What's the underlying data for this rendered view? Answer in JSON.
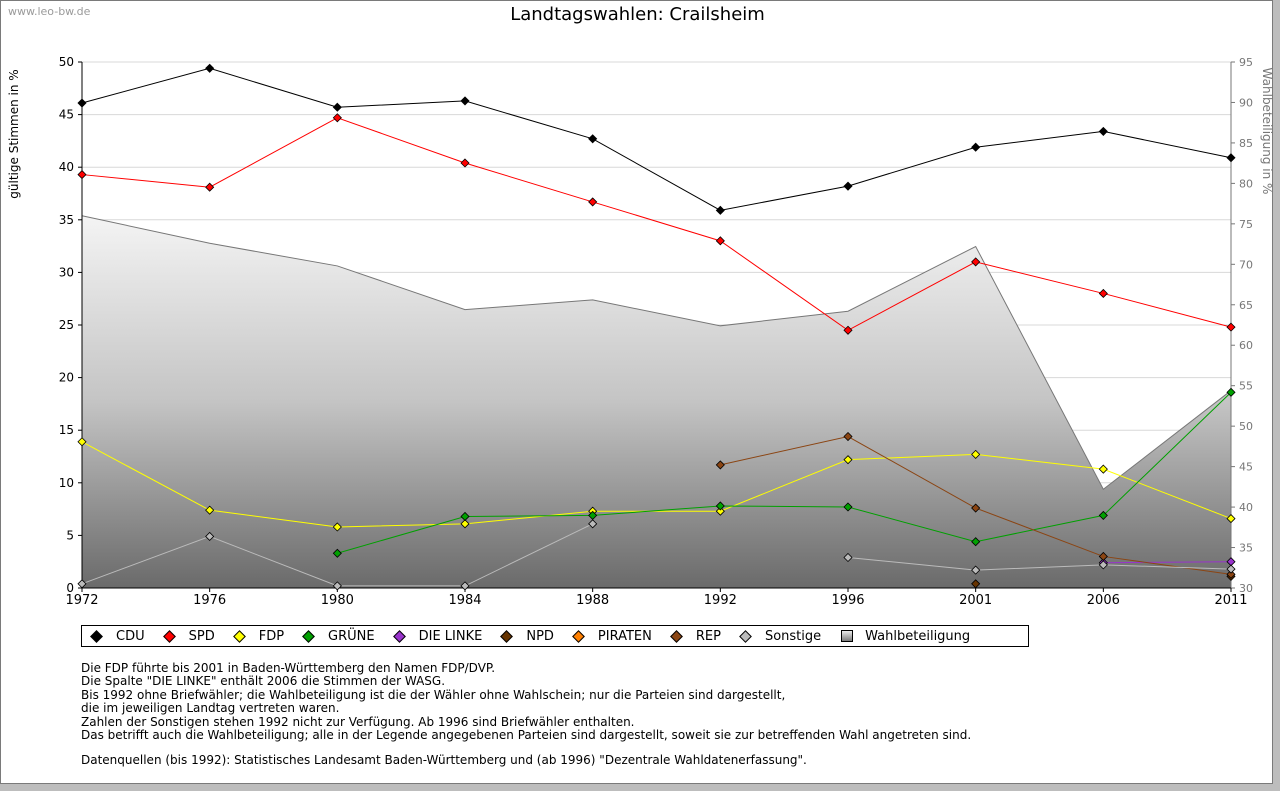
{
  "watermark": "www.leo-bw.de",
  "chart_data": {
    "type": "line",
    "title": "Landtagswahlen: Crailsheim",
    "ylabel": "gültige Stimmen in %",
    "y2label": "Wahlbeteiligung in %",
    "ylim": [
      0,
      50
    ],
    "y2lim": [
      30,
      95
    ],
    "yticks": [
      0,
      5,
      10,
      15,
      20,
      25,
      30,
      35,
      40,
      45,
      50
    ],
    "y2ticks": [
      30,
      35,
      40,
      45,
      50,
      55,
      60,
      65,
      70,
      75,
      80,
      85,
      90,
      95
    ],
    "categories": [
      "1972",
      "1976",
      "1980",
      "1984",
      "1988",
      "1992",
      "1996",
      "2001",
      "2006",
      "2011"
    ],
    "area": {
      "name": "Wahlbeteiligung",
      "axis": "right",
      "values": [
        76.0,
        72.6,
        69.8,
        64.4,
        65.6,
        62.4,
        64.2,
        72.2,
        42.2,
        54.4
      ]
    },
    "series": [
      {
        "name": "CDU",
        "color": "#000000",
        "values": [
          46.1,
          49.4,
          45.7,
          46.3,
          42.7,
          35.9,
          38.2,
          41.9,
          43.4,
          40.9
        ]
      },
      {
        "name": "SPD",
        "color": "#ff0000",
        "values": [
          39.3,
          38.1,
          44.7,
          40.4,
          36.7,
          33.0,
          24.5,
          31.0,
          28.0,
          24.8
        ]
      },
      {
        "name": "FDP",
        "color": "#ffff00",
        "values": [
          13.9,
          7.4,
          5.8,
          6.1,
          7.3,
          7.3,
          12.2,
          12.7,
          11.3,
          6.6
        ]
      },
      {
        "name": "GRÜNE",
        "color": "#00a000",
        "values": [
          null,
          null,
          3.3,
          6.8,
          6.9,
          7.8,
          7.7,
          4.4,
          6.9,
          18.6
        ]
      },
      {
        "name": "DIE LINKE",
        "color": "#9933cc",
        "values": [
          null,
          null,
          null,
          null,
          null,
          null,
          null,
          null,
          2.4,
          2.5
        ]
      },
      {
        "name": "NPD",
        "color": "#663300",
        "values": [
          null,
          null,
          null,
          null,
          null,
          null,
          null,
          0.4,
          null,
          1.1
        ]
      },
      {
        "name": "PIRATEN",
        "color": "#ff8000",
        "values": [
          null,
          null,
          null,
          null,
          null,
          null,
          null,
          null,
          null,
          null
        ]
      },
      {
        "name": "REP",
        "color": "#8b4513",
        "values": [
          null,
          null,
          null,
          null,
          null,
          11.7,
          14.4,
          7.6,
          3.0,
          1.3
        ]
      },
      {
        "name": "Sonstige",
        "color": "#bbbbbb",
        "values": [
          0.4,
          4.9,
          0.2,
          0.2,
          6.1,
          null,
          2.9,
          1.7,
          2.2,
          1.8
        ]
      }
    ],
    "legend": [
      "CDU",
      "SPD",
      "FDP",
      "GRÜNE",
      "DIE LINKE",
      "NPD",
      "PIRATEN",
      "REP",
      "Sonstige",
      "Wahlbeteiligung"
    ]
  },
  "notes": [
    "Die FDP führte bis 2001 in Baden-Württemberg den Namen FDP/DVP.",
    "Die Spalte \"DIE LINKE\" enthält 2006 die Stimmen der WASG.",
    "Bis 1992 ohne Briefwähler; die Wahlbeteiligung ist die der Wähler ohne Wahlschein; nur die Parteien sind dargestellt,",
    "die im jeweiligen Landtag vertreten waren.",
    "Zahlen der Sonstigen stehen 1992 nicht zur Verfügung. Ab 1996 sind Briefwähler enthalten.",
    "Das betrifft auch die Wahlbeteiligung; alle in der Legende angegebenen Parteien sind dargestellt, soweit sie zur betreffenden Wahl angetreten sind."
  ],
  "source": "Datenquellen (bis 1992): Statistisches Landesamt Baden-Württemberg und (ab 1996) \"Dezentrale Wahldatenerfassung\"."
}
